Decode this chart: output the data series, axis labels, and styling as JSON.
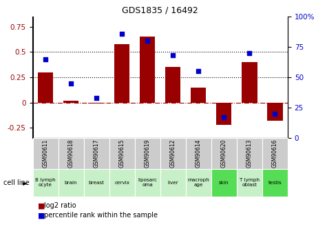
{
  "title": "GDS1835 / 16492",
  "samples": [
    "GSM90611",
    "GSM90618",
    "GSM90617",
    "GSM90615",
    "GSM90619",
    "GSM90612",
    "GSM90614",
    "GSM90620",
    "GSM90613",
    "GSM90616"
  ],
  "cell_lines": [
    "B lymph\nocyte",
    "brain",
    "breast",
    "cervix",
    "liposarc\noma",
    "liver",
    "macroph\nage",
    "skin",
    "T lymph\noblast",
    "testis"
  ],
  "cell_colors": [
    "#c8f0c8",
    "#c8f0c8",
    "#c8f0c8",
    "#c8f0c8",
    "#c8f0c8",
    "#c8f0c8",
    "#c8f0c8",
    "#55dd55",
    "#c8f0c8",
    "#55dd55"
  ],
  "gsm_box_color": "#cccccc",
  "log2_ratio": [
    0.3,
    0.02,
    -0.01,
    0.58,
    0.65,
    0.35,
    0.15,
    -0.22,
    0.4,
    -0.18
  ],
  "percentile_rank": [
    65,
    45,
    33,
    86,
    80,
    68,
    55,
    17,
    70,
    20
  ],
  "bar_color": "#990000",
  "dot_color": "#0000cc",
  "left_ylim": [
    -0.35,
    0.85
  ],
  "right_ylim": [
    0,
    100
  ],
  "left_yticks": [
    -0.25,
    0,
    0.25,
    0.5,
    0.75
  ],
  "right_yticks": [
    0,
    25,
    50,
    75,
    100
  ],
  "dotted_lines": [
    0.25,
    0.5
  ],
  "cell_line_label": "cell line",
  "legend_log2": "log2 ratio",
  "legend_pct": "percentile rank within the sample"
}
